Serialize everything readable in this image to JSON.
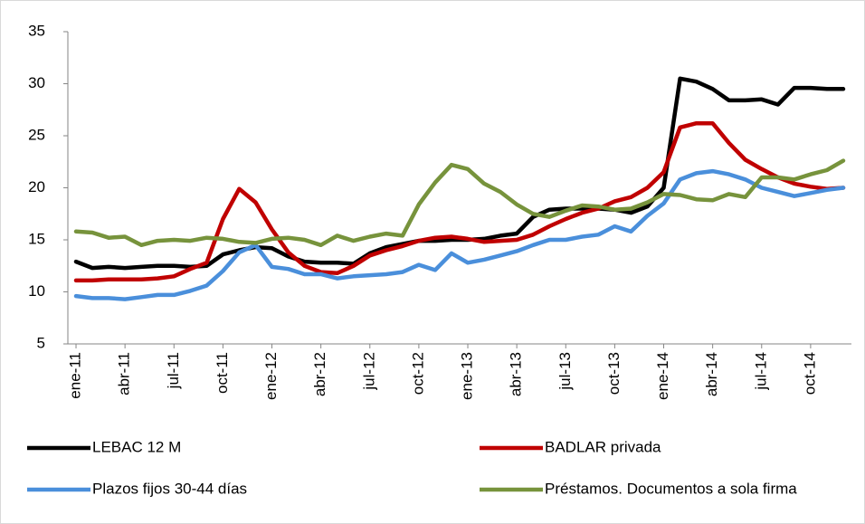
{
  "chart_data": {
    "type": "line",
    "categories": [
      "ene-11",
      null,
      null,
      "abr-11",
      null,
      null,
      "jul-11",
      null,
      null,
      "oct-11",
      null,
      null,
      "ene-12",
      null,
      null,
      "abr-12",
      null,
      null,
      "jul-12",
      null,
      null,
      "oct-12",
      null,
      null,
      "ene-13",
      null,
      null,
      "abr-13",
      null,
      null,
      "jul-13",
      null,
      null,
      "oct-13",
      null,
      null,
      "ene-14",
      null,
      null,
      "abr-14",
      null,
      null,
      "jul-14",
      null,
      null,
      "oct-14",
      null,
      null
    ],
    "series": [
      {
        "name": "LEBAC 12 M",
        "color": "#000000",
        "values": [
          12.9,
          12.3,
          12.4,
          12.3,
          12.4,
          12.5,
          12.5,
          12.4,
          12.5,
          13.6,
          14.0,
          14.3,
          14.2,
          13.4,
          12.9,
          12.8,
          12.8,
          12.7,
          13.7,
          14.3,
          14.6,
          14.9,
          14.9,
          15.0,
          15.0,
          15.1,
          15.4,
          15.6,
          17.2,
          17.9,
          18.0,
          18.0,
          18.0,
          17.9,
          17.6,
          18.2,
          20.0,
          30.5,
          30.2,
          29.5,
          28.4,
          28.4,
          28.5,
          28.0,
          29.6,
          29.6,
          29.5,
          29.5
        ]
      },
      {
        "name": "BADLAR privada",
        "color": "#c00000",
        "values": [
          11.1,
          11.1,
          11.2,
          11.2,
          11.2,
          11.3,
          11.5,
          12.2,
          12.8,
          17.0,
          19.9,
          18.6,
          16.0,
          13.8,
          12.5,
          11.9,
          11.8,
          12.5,
          13.5,
          14.0,
          14.4,
          14.9,
          15.2,
          15.3,
          15.1,
          14.8,
          14.9,
          15.0,
          15.5,
          16.3,
          17.0,
          17.6,
          18.0,
          18.7,
          19.1,
          20.0,
          21.5,
          25.8,
          26.2,
          26.2,
          24.3,
          22.7,
          21.8,
          21.0,
          20.4,
          20.1,
          19.9,
          20.0
        ]
      },
      {
        "name": "Plazos fijos 30-44 días",
        "color": "#4a8fdb",
        "values": [
          9.6,
          9.4,
          9.4,
          9.3,
          9.5,
          9.7,
          9.7,
          10.1,
          10.6,
          12.0,
          13.8,
          14.5,
          12.4,
          12.2,
          11.7,
          11.7,
          11.3,
          11.5,
          11.6,
          11.7,
          11.9,
          12.6,
          12.1,
          13.7,
          12.8,
          13.1,
          13.5,
          13.9,
          14.5,
          15.0,
          15.0,
          15.3,
          15.5,
          16.3,
          15.8,
          17.3,
          18.5,
          20.8,
          21.4,
          21.6,
          21.3,
          20.8,
          20.0,
          19.6,
          19.2,
          19.5,
          19.8,
          20.0
        ]
      },
      {
        "name": "Préstamos. Documentos a sola firma",
        "color": "#77933c",
        "values": [
          15.8,
          15.7,
          15.2,
          15.3,
          14.5,
          14.9,
          15.0,
          14.9,
          15.2,
          15.1,
          14.8,
          14.7,
          15.1,
          15.2,
          15.0,
          14.5,
          15.4,
          14.9,
          15.3,
          15.6,
          15.4,
          18.4,
          20.5,
          22.2,
          21.8,
          20.4,
          19.6,
          18.4,
          17.5,
          17.2,
          17.8,
          18.3,
          18.2,
          17.9,
          18.0,
          18.6,
          19.4,
          19.3,
          18.9,
          18.8,
          19.4,
          19.1,
          21.0,
          21.0,
          20.8,
          21.3,
          21.7,
          22.6
        ]
      }
    ],
    "ylim": [
      5,
      35
    ],
    "yticks": [
      5,
      10,
      15,
      20,
      25,
      30,
      35
    ],
    "grid": false,
    "legend": "bottom"
  }
}
